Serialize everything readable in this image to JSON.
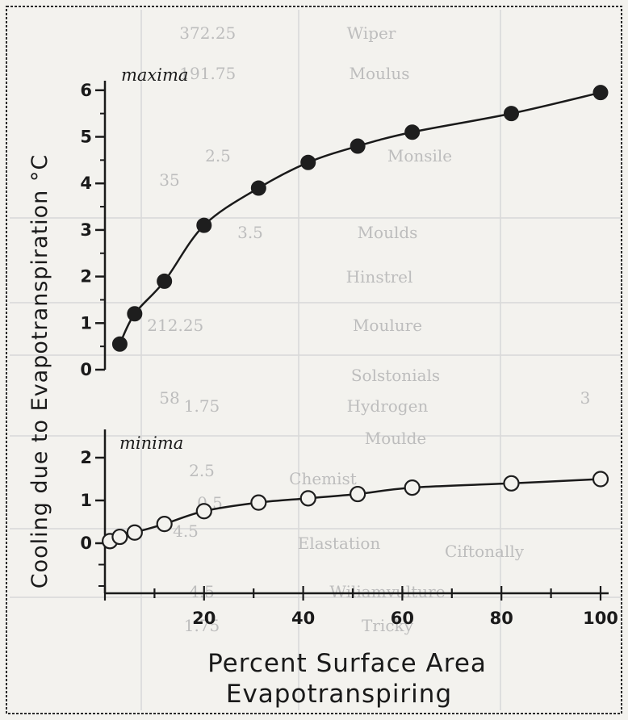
{
  "chart_data": {
    "type": "line",
    "ylabel": "Cooling due to Evapotranspiration °C",
    "xlabel_line1": "Percent Surface Area",
    "xlabel_line2": "Evapotranspiring",
    "xlim": [
      0,
      100
    ],
    "xticks": [
      20,
      40,
      60,
      80,
      100
    ],
    "background_table_cells": [
      "Wiper",
      "Moulus",
      "Monsile",
      "Moulds",
      "Hinstrel",
      "Moulure",
      "Solstonials",
      "Hydrogen",
      "Moulde",
      "Wiliamvulture",
      "Tricky",
      "Chemist",
      "Elastation",
      "Ciftonally"
    ],
    "background_table_numbers": [
      "2.25",
      "1.75",
      "2.5",
      "3.5",
      "2.25",
      "1.75",
      "2.5",
      "4.5",
      "1.75",
      "0.5",
      "4.5",
      "37",
      "19",
      "35",
      "21",
      "58",
      "3"
    ],
    "panels": [
      {
        "label": "maxima",
        "marker": "filled-circle",
        "ylim": [
          0,
          6
        ],
        "yticks": [
          0,
          1,
          2,
          3,
          4,
          5,
          6
        ],
        "x": [
          3,
          6,
          12,
          20,
          31,
          41,
          51,
          62,
          82,
          100
        ],
        "y": [
          0.55,
          1.2,
          1.9,
          3.1,
          3.9,
          4.45,
          4.8,
          5.1,
          5.5,
          5.95
        ]
      },
      {
        "label": "minima",
        "marker": "open-circle",
        "ylim": [
          -1,
          2.5
        ],
        "yticks": [
          0,
          1,
          2
        ],
        "x": [
          1,
          3,
          6,
          12,
          20,
          31,
          41,
          51,
          62,
          82,
          100
        ],
        "y": [
          0.05,
          0.15,
          0.25,
          0.45,
          0.75,
          0.95,
          1.05,
          1.15,
          1.3,
          1.4,
          1.5
        ]
      }
    ]
  }
}
